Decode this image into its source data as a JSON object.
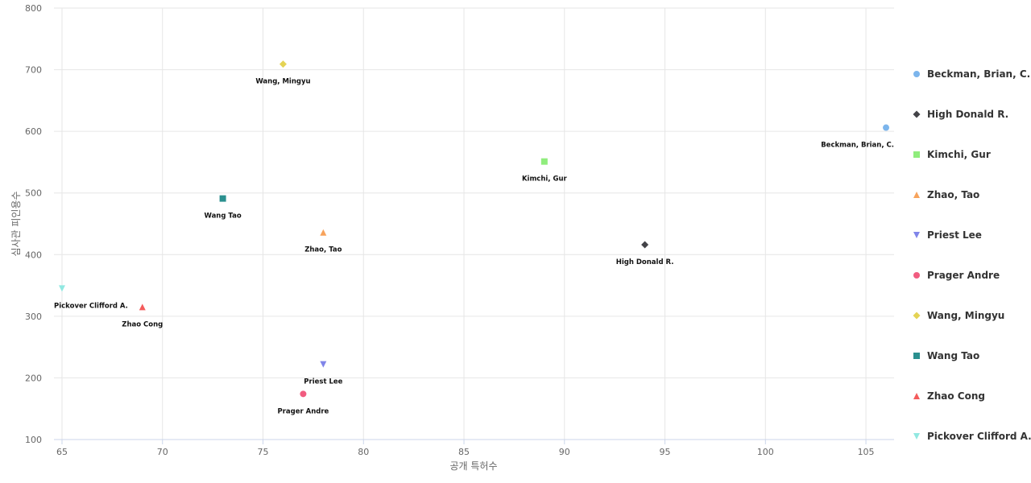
{
  "chart_data": {
    "type": "scatter",
    "title": "",
    "xlabel": "공개 특허수",
    "ylabel": "심사관 피인용수",
    "xlim": [
      64.6,
      106.4
    ],
    "ylim": [
      100,
      800
    ],
    "xticks": [
      65,
      70,
      75,
      80,
      85,
      90,
      95,
      100,
      105
    ],
    "yticks": [
      100,
      200,
      300,
      400,
      500,
      600,
      700,
      800
    ],
    "grid": true,
    "legend_position": "right",
    "series": [
      {
        "name": "Beckman, Brian, C.",
        "x": 106,
        "y": 606,
        "marker": "circle",
        "color": "#7cb5ec"
      },
      {
        "name": "High Donald R.",
        "x": 94,
        "y": 416,
        "marker": "diamond",
        "color": "#434348"
      },
      {
        "name": "Kimchi, Gur",
        "x": 89,
        "y": 551,
        "marker": "square",
        "color": "#90ed7d"
      },
      {
        "name": "Zhao, Tao",
        "x": 78,
        "y": 436,
        "marker": "triangle",
        "color": "#f7a35c"
      },
      {
        "name": "Priest Lee",
        "x": 78,
        "y": 222,
        "marker": "triangle-down",
        "color": "#8085e9"
      },
      {
        "name": "Prager Andre",
        "x": 77,
        "y": 174,
        "marker": "circle",
        "color": "#f15c80"
      },
      {
        "name": "Wang, Mingyu",
        "x": 76,
        "y": 709,
        "marker": "diamond",
        "color": "#e4d354"
      },
      {
        "name": "Wang Tao",
        "x": 73,
        "y": 491,
        "marker": "square",
        "color": "#2b908f"
      },
      {
        "name": "Zhao Cong",
        "x": 69,
        "y": 315,
        "marker": "triangle",
        "color": "#f45b5b"
      },
      {
        "name": "Pickover Clifford A.",
        "x": 65,
        "y": 345,
        "marker": "triangle-down",
        "color": "#91e8e1"
      }
    ]
  }
}
